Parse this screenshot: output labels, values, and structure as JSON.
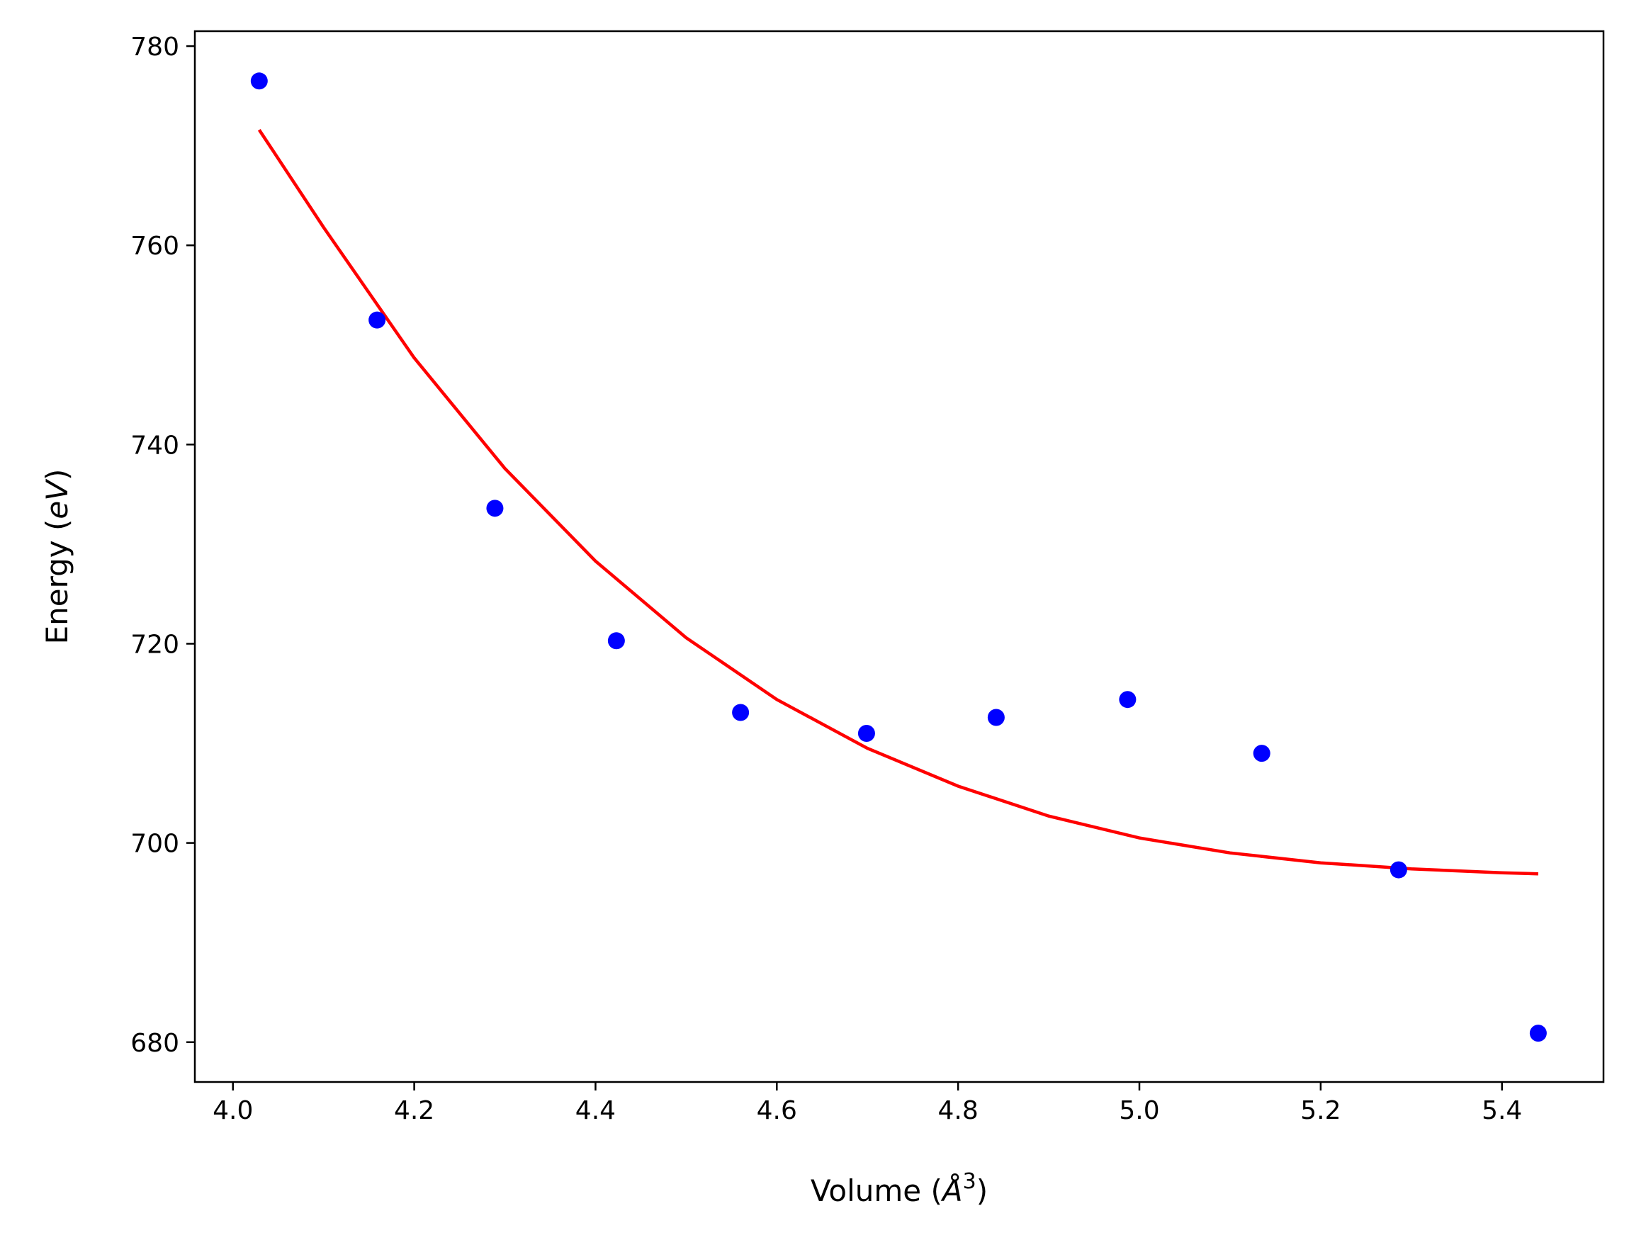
{
  "chart_data": {
    "type": "scatter",
    "xlabel": {
      "prefix": "Volume (",
      "unit": "Å",
      "sup": "3",
      "suffix": ")"
    },
    "ylabel": {
      "prefix": "Energy (",
      "unit": "eV",
      "suffix": ")"
    },
    "xlim": [
      3.958,
      5.512
    ],
    "ylim": [
      676,
      781.5
    ],
    "xticks": [
      4.0,
      4.2,
      4.4,
      4.6,
      4.8,
      5.0,
      5.2,
      5.4
    ],
    "xtick_labels": [
      "4.0",
      "4.2",
      "4.4",
      "4.6",
      "4.8",
      "5.0",
      "5.2",
      "5.4"
    ],
    "yticks": [
      680,
      700,
      720,
      740,
      760,
      780
    ],
    "ytick_labels": [
      "680",
      "700",
      "720",
      "740",
      "760",
      "780"
    ],
    "grid": false,
    "series": [
      {
        "kind": "scatter",
        "color": "#0000ff",
        "x": [
          4.029,
          4.159,
          4.289,
          4.423,
          4.56,
          4.699,
          4.842,
          4.987,
          5.135,
          5.286,
          5.44
        ],
        "y": [
          776.5,
          752.5,
          733.6,
          720.3,
          713.1,
          711.0,
          712.6,
          714.4,
          709.0,
          697.3,
          680.9
        ]
      },
      {
        "kind": "line",
        "color": "#ff0000",
        "x": [
          4.029,
          4.1,
          4.2,
          4.3,
          4.4,
          4.5,
          4.6,
          4.7,
          4.8,
          4.9,
          5.0,
          5.1,
          5.2,
          5.3,
          5.4,
          5.44
        ],
        "y": [
          771.6,
          761.8,
          748.7,
          737.6,
          728.3,
          720.6,
          714.4,
          709.5,
          705.7,
          702.7,
          700.5,
          699.0,
          698.0,
          697.4,
          697.0,
          696.9
        ]
      }
    ]
  }
}
